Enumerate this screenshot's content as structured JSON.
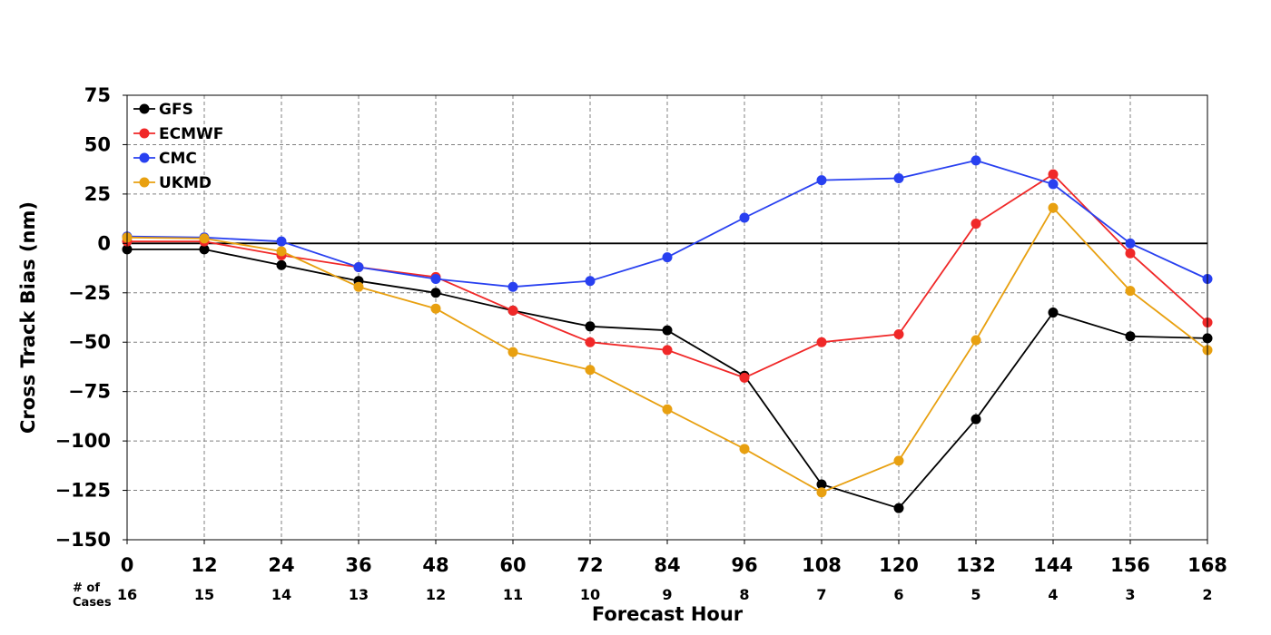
{
  "chart_data": {
    "type": "line",
    "title": "",
    "xlabel": "Forecast Hour",
    "ylabel": "Cross Track Bias (nm)",
    "xlim": [
      0,
      168
    ],
    "ylim": [
      -150,
      75
    ],
    "x_ticks": [
      0,
      12,
      24,
      36,
      48,
      60,
      72,
      84,
      96,
      108,
      120,
      132,
      144,
      156,
      168
    ],
    "y_ticks": [
      75,
      50,
      25,
      0,
      -25,
      -50,
      -75,
      -100,
      -125,
      -150
    ],
    "y_tick_labels": [
      "75",
      "50",
      "25",
      "0",
      "−25",
      "−50",
      "−75",
      "−100",
      "−125",
      "−150"
    ],
    "x": [
      0,
      12,
      24,
      36,
      48,
      60,
      72,
      84,
      96,
      108,
      120,
      132,
      144,
      156,
      168
    ],
    "cases_header": [
      "# of",
      "Cases"
    ],
    "cases": [
      16,
      15,
      14,
      13,
      12,
      11,
      10,
      9,
      8,
      7,
      6,
      5,
      4,
      3,
      2
    ],
    "grid": true,
    "zero_line": true,
    "legend_position": "top-left",
    "series": [
      {
        "name": "GFS",
        "color": "#000000",
        "values": [
          -3,
          -3,
          -11,
          -19,
          -25,
          -34,
          -42,
          -44,
          -67,
          -122,
          -134,
          -89,
          -35,
          -47,
          -48
        ]
      },
      {
        "name": "ECMWF",
        "color": "#f02828",
        "values": [
          1,
          1,
          -6,
          -12,
          -17,
          -34,
          -50,
          -54,
          -68,
          -50,
          -46,
          10,
          35,
          -5,
          -40
        ]
      },
      {
        "name": "CMC",
        "color": "#2840f0",
        "values": [
          3.5,
          3,
          1,
          -12,
          -18,
          -22,
          -19,
          -7,
          13,
          32,
          33,
          42,
          30,
          0,
          -18
        ]
      },
      {
        "name": "UKMD",
        "color": "#e8a010",
        "values": [
          3,
          2.5,
          -4,
          -22,
          -33,
          -55,
          -64,
          -84,
          -104,
          -126,
          -110,
          -49,
          18,
          -24,
          -54
        ]
      }
    ]
  }
}
